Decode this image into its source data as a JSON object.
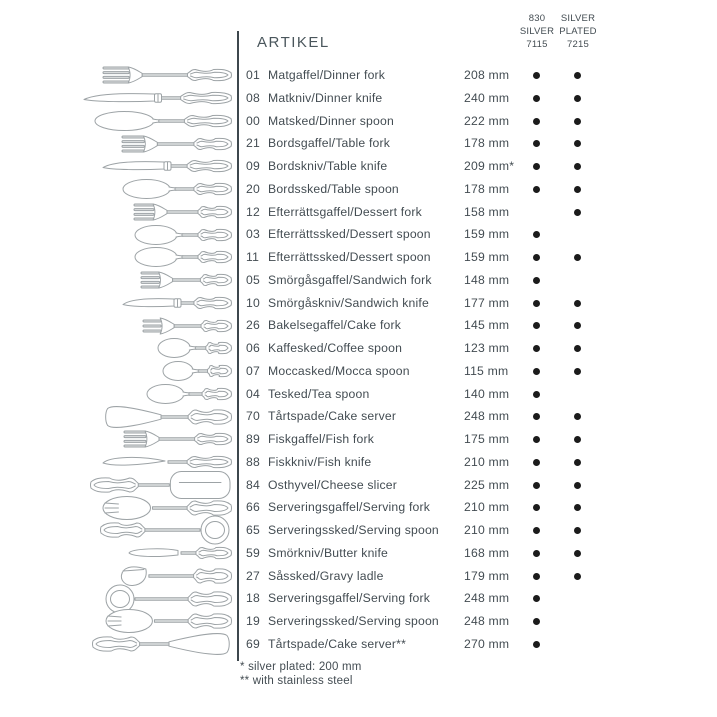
{
  "header": {
    "artikel_label": "ARTIKEL",
    "columns": [
      {
        "id": "830-silver-7115",
        "lines": [
          "830",
          "SILVER",
          "7115"
        ]
      },
      {
        "id": "silver-plated-7215",
        "lines": [
          "SILVER",
          "PLATED",
          "7215"
        ]
      }
    ]
  },
  "items": [
    {
      "no": "01",
      "name": "Matgaffel/Dinner fork",
      "size": "208 mm",
      "mm": 208,
      "icon": "dinner-fork",
      "type": "fork",
      "flip": false,
      "c1": true,
      "c2": true
    },
    {
      "no": "08",
      "name": "Matkniv/Dinner knife",
      "size": "240 mm",
      "mm": 240,
      "icon": "dinner-knife",
      "type": "knife",
      "flip": false,
      "c1": true,
      "c2": true
    },
    {
      "no": "00",
      "name": "Matsked/Dinner spoon",
      "size": "222 mm",
      "mm": 222,
      "icon": "dinner-spoon",
      "type": "spoon",
      "flip": false,
      "c1": true,
      "c2": true
    },
    {
      "no": "21",
      "name": "Bordsgaffel/Table fork",
      "size": "178 mm",
      "mm": 178,
      "icon": "table-fork",
      "type": "fork",
      "flip": false,
      "c1": true,
      "c2": true
    },
    {
      "no": "09",
      "name": "Bordskniv/Table knife",
      "size": "209 mm*",
      "mm": 209,
      "icon": "table-knife",
      "type": "knife",
      "flip": false,
      "c1": true,
      "c2": true
    },
    {
      "no": "20",
      "name": "Bordssked/Table spoon",
      "size": "178 mm",
      "mm": 178,
      "icon": "table-spoon",
      "type": "spoon",
      "flip": false,
      "c1": true,
      "c2": true
    },
    {
      "no": "12",
      "name": "Efterrättsgaffel/Dessert fork",
      "size": "158 mm",
      "mm": 158,
      "icon": "dessert-fork",
      "type": "fork",
      "flip": false,
      "c1": false,
      "c2": true
    },
    {
      "no": "03",
      "name": "Efterrättssked/Dessert spoon",
      "size": "159 mm",
      "mm": 159,
      "icon": "dessert-spoon",
      "type": "spoon",
      "flip": false,
      "c1": true,
      "c2": false
    },
    {
      "no": "11",
      "name": "Efterrättssked/Dessert spoon",
      "size": "159 mm",
      "mm": 159,
      "icon": "dessert-spoon",
      "type": "spoon",
      "flip": false,
      "c1": true,
      "c2": true
    },
    {
      "no": "05",
      "name": "Smörgåsgaffel/Sandwich fork",
      "size": "148 mm",
      "mm": 148,
      "icon": "sandwich-fork",
      "type": "fork",
      "flip": false,
      "c1": true,
      "c2": false
    },
    {
      "no": "10",
      "name": "Smörgåskniv/Sandwich knife",
      "size": "177 mm",
      "mm": 177,
      "icon": "sandwich-knife",
      "type": "knife",
      "flip": false,
      "c1": true,
      "c2": true
    },
    {
      "no": "26",
      "name": "Bakelsegaffel/Cake fork",
      "size": "145 mm",
      "mm": 145,
      "icon": "cake-fork",
      "type": "fork3",
      "flip": false,
      "c1": true,
      "c2": true
    },
    {
      "no": "06",
      "name": "Kaffesked/Coffee spoon",
      "size": "123 mm",
      "mm": 123,
      "icon": "coffee-spoon",
      "type": "spoon",
      "flip": false,
      "c1": true,
      "c2": true
    },
    {
      "no": "07",
      "name": "Moccasked/Mocca spoon",
      "size": "115 mm",
      "mm": 115,
      "icon": "mocca-spoon",
      "type": "spoon",
      "flip": false,
      "c1": true,
      "c2": true
    },
    {
      "no": "04",
      "name": "Tesked/Tea spoon",
      "size": "140 mm",
      "mm": 140,
      "icon": "tea-spoon",
      "type": "spoon",
      "flip": false,
      "c1": true,
      "c2": false
    },
    {
      "no": "70",
      "name": "Tårtspade/Cake server",
      "size": "248 mm",
      "mm": 248,
      "icon": "cake-server",
      "type": "server",
      "flip": false,
      "c1": true,
      "c2": true
    },
    {
      "no": "89",
      "name": "Fiskgaffel/Fish fork",
      "size": "175 mm",
      "mm": 175,
      "icon": "fish-fork",
      "type": "fork",
      "flip": false,
      "c1": true,
      "c2": true
    },
    {
      "no": "88",
      "name": "Fiskkniv/Fish knife",
      "size": "210 mm",
      "mm": 210,
      "icon": "fish-knife",
      "type": "fishknife",
      "flip": false,
      "c1": true,
      "c2": true
    },
    {
      "no": "84",
      "name": "Osthyvel/Cheese slicer",
      "size": "225 mm",
      "mm": 225,
      "icon": "cheese-slicer",
      "type": "slicer",
      "flip": true,
      "c1": true,
      "c2": true
    },
    {
      "no": "66",
      "name": "Serveringsgaffel/Serving fork",
      "size": "210 mm",
      "mm": 210,
      "icon": "serving-fork",
      "type": "spork",
      "flip": false,
      "c1": true,
      "c2": true
    },
    {
      "no": "65",
      "name": "Serveringssked/Serving spoon",
      "size": "210 mm",
      "mm": 210,
      "icon": "serving-spoon",
      "type": "servingspoon",
      "flip": true,
      "c1": true,
      "c2": true
    },
    {
      "no": "59",
      "name": "Smörkniv/Butter knife",
      "size": "168 mm",
      "mm": 168,
      "icon": "butter-knife",
      "type": "butterknife",
      "flip": false,
      "c1": true,
      "c2": true
    },
    {
      "no": "27",
      "name": "Såssked/Gravy ladle",
      "size": "179 mm",
      "mm": 179,
      "icon": "gravy-ladle",
      "type": "ladle",
      "flip": false,
      "c1": true,
      "c2": true
    },
    {
      "no": "18",
      "name": "Serveringsgaffel/Serving fork",
      "size": "248 mm",
      "mm": 248,
      "icon": "serving-spoon",
      "type": "servingspoon",
      "flip": false,
      "c1": true,
      "c2": false
    },
    {
      "no": "19",
      "name": "Serveringssked/Serving spoon",
      "size": "248 mm",
      "mm": 248,
      "icon": "serving-fork",
      "type": "spork",
      "flip": false,
      "c1": true,
      "c2": false
    },
    {
      "no": "69",
      "name": "Tårtspade/Cake server**",
      "size": "270 mm",
      "mm": 270,
      "icon": "cake-server",
      "type": "server",
      "flip": true,
      "c1": true,
      "c2": false
    }
  ],
  "footnotes": [
    "* silver plated: 200 mm",
    "** with stainless steel"
  ],
  "colors": {
    "text": "#434c52",
    "rule": "#3d474d",
    "dot": "#1b1b1b",
    "drawing": "#9da3a6",
    "drawing_fill": "#ffffff",
    "stem_fill": "#dfe1e2"
  }
}
